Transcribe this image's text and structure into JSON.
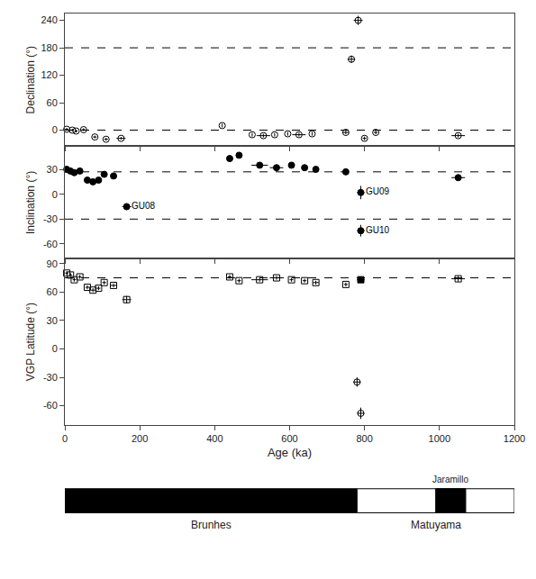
{
  "chart_data": {
    "type": "scatter",
    "xlabel": "Age (ka)",
    "xlim": [
      0,
      1200
    ],
    "xticks": [
      0,
      200,
      400,
      600,
      800,
      1000,
      1200
    ],
    "grid": false,
    "panels": [
      {
        "ylabel": "Declination (°)",
        "ylim": [
          -35,
          255
        ],
        "yticks": [
          0,
          60,
          120,
          180,
          240
        ],
        "reference_lines": [
          0,
          180
        ],
        "line_style": "dashed",
        "series": [
          {
            "marker": "open circle",
            "color": "black",
            "x": [
              5,
              20,
              30,
              50,
              80,
              110,
              150,
              420,
              500,
              530,
              560,
              595,
              625,
              660,
              750,
              765,
              783,
              800,
              830,
              1050
            ],
            "values": [
              2,
              0,
              -2,
              1,
              -15,
              -20,
              -18,
              10,
              -10,
              -12,
              -10,
              -8,
              -10,
              -8,
              -5,
              155,
              240,
              -18,
              -5,
              -12
            ],
            "xerr": [
              4,
              4,
              4,
              4,
              5,
              5,
              12,
              0,
              0,
              18,
              0,
              0,
              18,
              0,
              8,
              10,
              12,
              5,
              5,
              18
            ],
            "yerr": [
              3,
              3,
              3,
              3,
              3,
              3,
              3,
              4,
              4,
              4,
              4,
              4,
              4,
              4,
              4,
              8,
              10,
              4,
              4,
              4
            ]
          }
        ]
      },
      {
        "ylabel": "Inclination (°)",
        "ylim": [
          -78,
          58
        ],
        "yticks": [
          -60,
          -30,
          0,
          30
        ],
        "reference_lines": [
          27,
          -30
        ],
        "line_style": "dashed",
        "series": [
          {
            "marker": "filled circle",
            "color": "black",
            "x": [
              5,
              15,
              25,
              40,
              60,
              75,
              90,
              105,
              130,
              165,
              440,
              465,
              520,
              565,
              605,
              640,
              670,
              750,
              790,
              1050
            ],
            "values": [
              30,
              28,
              26,
              28,
              17,
              15,
              17,
              24,
              22,
              -15,
              43,
              47,
              35,
              32,
              35,
              32,
              30,
              27,
              2,
              20
            ],
            "xerr": [
              4,
              4,
              4,
              4,
              5,
              5,
              5,
              5,
              8,
              12,
              5,
              5,
              22,
              18,
              5,
              5,
              8,
              5,
              10,
              18
            ],
            "yerr": [
              2,
              2,
              2,
              2,
              2,
              2,
              2,
              2,
              2,
              4,
              2,
              2,
              2,
              2,
              2,
              2,
              2,
              2,
              8,
              3
            ],
            "labels": [
              null,
              null,
              null,
              null,
              null,
              null,
              null,
              null,
              null,
              "GU08",
              null,
              null,
              null,
              null,
              null,
              null,
              null,
              null,
              "GU09",
              null
            ]
          },
          {
            "marker": "filled circle",
            "color": "black",
            "x": [
              790
            ],
            "values": [
              -44
            ],
            "xerr": [
              10
            ],
            "yerr": [
              7
            ],
            "labels": [
              "GU10"
            ]
          }
        ]
      },
      {
        "ylabel": "VGP Latitude (°)",
        "ylim": [
          -80,
          95
        ],
        "yticks": [
          -60,
          -30,
          0,
          30,
          60,
          90
        ],
        "reference_lines": [
          75
        ],
        "line_style": "dashed",
        "series": [
          {
            "marker": "open square",
            "color": "black",
            "x": [
              5,
              15,
              25,
              40,
              60,
              75,
              90,
              105,
              130,
              165,
              440,
              465,
              520,
              565,
              605,
              640,
              670,
              750,
              1050
            ],
            "values": [
              80,
              78,
              73,
              76,
              65,
              62,
              64,
              70,
              67,
              52,
              76,
              72,
              73,
              75,
              73,
              72,
              70,
              68,
              74
            ],
            "xerr": [
              4,
              4,
              4,
              4,
              5,
              5,
              5,
              5,
              8,
              12,
              5,
              5,
              22,
              18,
              5,
              5,
              8,
              5,
              18
            ],
            "yerr": [
              2,
              2,
              2,
              2,
              2,
              2,
              2,
              2,
              2,
              4,
              2,
              2,
              2,
              2,
              2,
              2,
              2,
              2,
              3
            ]
          },
          {
            "marker": "filled square",
            "color": "black",
            "x": [
              790
            ],
            "values": [
              73
            ],
            "xerr": [
              10
            ],
            "yerr": [
              3
            ]
          },
          {
            "marker": "open circle",
            "color": "black",
            "x": [
              780
            ],
            "values": [
              -35
            ],
            "xerr": [
              10
            ],
            "yerr": [
              5
            ]
          },
          {
            "marker": "open circle",
            "color": "black",
            "x": [
              790
            ],
            "values": [
              -68
            ],
            "xerr": [
              10
            ],
            "yerr": [
              6
            ]
          }
        ]
      }
    ],
    "timescale": {
      "chrons": [
        {
          "label": "Brunhes",
          "start": 0,
          "end": 780,
          "color": "black"
        },
        {
          "label": "Matuyama",
          "start": 780,
          "end": 1200,
          "color": "white"
        }
      ],
      "subchrons": [
        {
          "label": "Jaramillo",
          "start": 990,
          "end": 1070,
          "color": "black"
        }
      ]
    }
  }
}
